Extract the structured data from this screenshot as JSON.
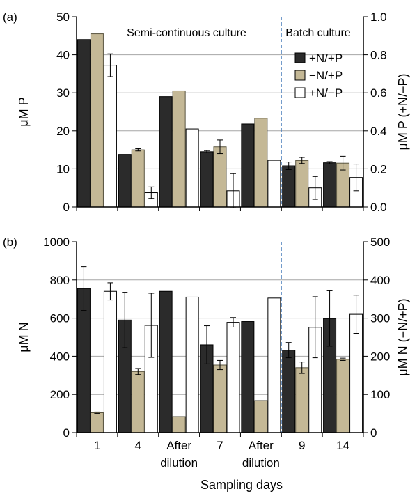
{
  "x_label": "Sampling days",
  "categories": [
    {
      "line1": "1",
      "line2": ""
    },
    {
      "line1": "4",
      "line2": ""
    },
    {
      "line1": "After",
      "line2": "dilution"
    },
    {
      "line1": "7",
      "line2": ""
    },
    {
      "line1": "After",
      "line2": "dilution"
    },
    {
      "line1": "9",
      "line2": ""
    },
    {
      "line1": "14",
      "line2": ""
    }
  ],
  "legend": [
    {
      "label": "+N/+P",
      "color": "#2b2b2b"
    },
    {
      "label": "−N/+P",
      "color": "#c4b896"
    },
    {
      "label": "+N/−P",
      "color": "#ffffff"
    }
  ],
  "chart_data": [
    {
      "panel": "(a)",
      "type": "bar",
      "annotations": [
        "Semi-continuous culture",
        "Batch culture"
      ],
      "ylabel_left": "μM P",
      "ylabel_right": "μM P (+N/−P)",
      "ylim_left": [
        0,
        50
      ],
      "yticks_left": [
        "0",
        "10",
        "20",
        "30",
        "40",
        "50"
      ],
      "ylim_right": [
        0,
        1.0
      ],
      "yticks_right": [
        "0.0",
        "0.2",
        "0.4",
        "0.6",
        "0.8",
        "1.0"
      ],
      "grid": true,
      "series": [
        {
          "name": "+N/+P",
          "axis": "left",
          "values": [
            44.0,
            13.8,
            29.0,
            14.5,
            21.8,
            10.8,
            11.6
          ],
          "errors": [
            0,
            0,
            0,
            0.3,
            0,
            1.0,
            0.3
          ]
        },
        {
          "name": "−N/+P",
          "axis": "left",
          "values": [
            45.5,
            15.0,
            30.5,
            15.8,
            23.3,
            12.2,
            11.5
          ],
          "errors": [
            0,
            0.3,
            0,
            1.8,
            0,
            0.8,
            1.8
          ]
        },
        {
          "name": "+N/−P",
          "axis": "right",
          "values": [
            0.745,
            0.075,
            0.41,
            0.085,
            0.245,
            0.1,
            0.155
          ],
          "errors": [
            0.06,
            0.03,
            0,
            0.09,
            0,
            0.06,
            0.07
          ]
        }
      ]
    },
    {
      "panel": "(b)",
      "type": "bar",
      "ylabel_left": "μM N",
      "ylabel_right": "μM N (−N/+P)",
      "ylim_left": [
        0,
        1000
      ],
      "yticks_left": [
        "0",
        "200",
        "400",
        "600",
        "800",
        "1000"
      ],
      "ylim_right": [
        0,
        500
      ],
      "yticks_right": [
        "0",
        "100",
        "200",
        "300",
        "400",
        "500"
      ],
      "grid": true,
      "series": [
        {
          "name": "+N/+P",
          "axis": "left",
          "values": [
            755,
            590,
            740,
            460,
            582,
            432,
            598
          ],
          "errors": [
            115,
            145,
            0,
            100,
            0,
            40,
            145
          ]
        },
        {
          "name": "−N/+P",
          "axis": "right",
          "values": [
            52,
            160,
            42,
            177,
            84,
            170,
            192
          ],
          "errors": [
            2,
            8,
            0,
            12,
            0,
            15,
            3
          ]
        },
        {
          "name": "+N/−P",
          "axis": "left",
          "values": [
            740,
            562,
            710,
            578,
            705,
            552,
            620
          ],
          "errors": [
            45,
            168,
            0,
            25,
            0,
            160,
            100
          ]
        }
      ]
    }
  ]
}
